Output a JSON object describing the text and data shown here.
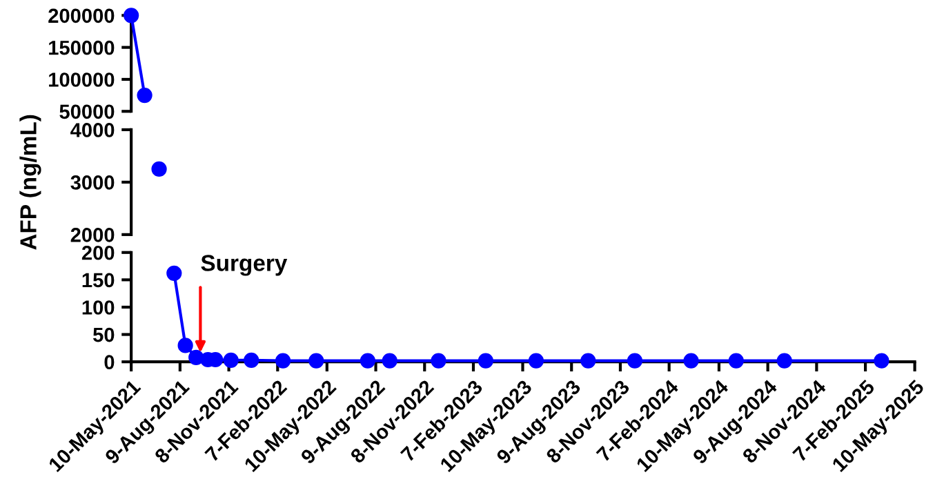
{
  "chart_data": [
    {
      "type": "line",
      "x": [
        "2021-05-10",
        "2021-06-04"
      ],
      "series": [
        {
          "color": "#0000ff",
          "values": [
            200000,
            75000
          ]
        }
      ],
      "xlim": [
        "2021-05-10",
        "2025-05-10"
      ],
      "ylim": [
        50000,
        200000
      ],
      "yticks": [
        50000,
        100000,
        150000,
        200000
      ],
      "tick_labels": "y",
      "marker": "circle",
      "line_style": "solid",
      "grid": false
    },
    {
      "type": "line",
      "ylabel": "AFP (ng/mL)",
      "x": [
        "2021-07-01"
      ],
      "series": [
        {
          "color": "#0000ff",
          "values": [
            3250
          ]
        }
      ],
      "xlim": [
        "2021-05-10",
        "2025-05-10"
      ],
      "ylim": [
        2000,
        4000
      ],
      "yticks": [
        2000,
        3000,
        4000
      ],
      "tick_labels": "y",
      "marker": "circle",
      "line_style": "solid",
      "grid": false
    },
    {
      "type": "line",
      "x": [
        "2021-07-29",
        "2021-08-19",
        "2021-09-08",
        "2021-09-30",
        "2021-10-14",
        "2021-11-12",
        "2021-12-20",
        "2022-02-17",
        "2022-04-20",
        "2022-07-25",
        "2022-09-04",
        "2022-12-04",
        "2023-03-02",
        "2023-06-04",
        "2023-09-09",
        "2023-12-05",
        "2024-03-19",
        "2024-06-11",
        "2024-09-09",
        "2025-03-09"
      ],
      "series": [
        {
          "color": "#0000ff",
          "values": [
            162,
            30,
            8,
            4,
            4,
            3,
            3,
            2,
            2,
            2,
            2,
            2,
            2,
            2,
            2,
            2,
            2,
            2,
            2,
            2
          ]
        }
      ],
      "xlim": [
        "2021-05-10",
        "2025-05-10"
      ],
      "ylim": [
        0,
        200
      ],
      "yticks": [
        0,
        50,
        100,
        150,
        200
      ],
      "xticks": [
        {
          "value": "2021-05-10",
          "label": "10-May-2021"
        },
        {
          "value": "2021-08-09",
          "label": "9-Aug-2021"
        },
        {
          "value": "2021-11-08",
          "label": "8-Nov-2021"
        },
        {
          "value": "2022-02-07",
          "label": "7-Feb-2022"
        },
        {
          "value": "2022-05-10",
          "label": "10-May-2022"
        },
        {
          "value": "2022-08-09",
          "label": "9-Aug-2022"
        },
        {
          "value": "2022-11-08",
          "label": "8-Nov-2022"
        },
        {
          "value": "2023-02-07",
          "label": "7-Feb-2023"
        },
        {
          "value": "2023-05-10",
          "label": "10-May-2023"
        },
        {
          "value": "2023-08-09",
          "label": "9-Aug-2023"
        },
        {
          "value": "2023-11-08",
          "label": "8-Nov-2023"
        },
        {
          "value": "2024-02-07",
          "label": "7-Feb-2024"
        },
        {
          "value": "2024-05-10",
          "label": "10-May-2024"
        },
        {
          "value": "2024-08-09",
          "label": "9-Aug-2024"
        },
        {
          "value": "2024-11-08",
          "label": "8-Nov-2024"
        },
        {
          "value": "2025-02-07",
          "label": "7-Feb-2025"
        },
        {
          "value": "2025-05-10",
          "label": "10-May-2025"
        }
      ],
      "annotations": [
        {
          "text": "Surgery",
          "x": "2021-09-16",
          "y": 10
        }
      ],
      "marker": "circle",
      "line_style": "solid",
      "grid": false
    }
  ]
}
